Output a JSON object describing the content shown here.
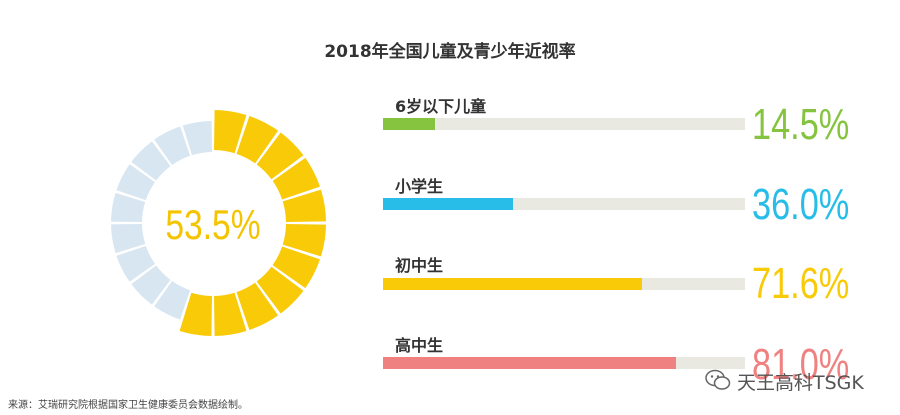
{
  "title": "2018年全国儿童及青少年近视率",
  "source": "来源：艾瑞研究院根据国家卫生健康委员会数据绘制。",
  "watermark": "天王高科TSGK",
  "colors": {
    "donut_highlight": "#f8ca08",
    "donut_remainder": "#d7e6f1",
    "track": "#eae9e1"
  },
  "chart_data": [
    {
      "type": "pie",
      "variant": "segmented-donut",
      "value": 53.5,
      "value_label": "53.5%",
      "max": 100
    },
    {
      "type": "bar",
      "orientation": "horizontal",
      "xlim": [
        0,
        100
      ],
      "categories": [
        "6岁以下儿童",
        "小学生",
        "初中生",
        "高中生"
      ],
      "values": [
        14.5,
        36.0,
        71.6,
        81.0
      ],
      "value_labels": [
        "14.5%",
        "36.0%",
        "71.6%",
        "81.0%"
      ],
      "colors": [
        "#86c440",
        "#27bde8",
        "#f8ca08",
        "#f08181"
      ]
    }
  ]
}
